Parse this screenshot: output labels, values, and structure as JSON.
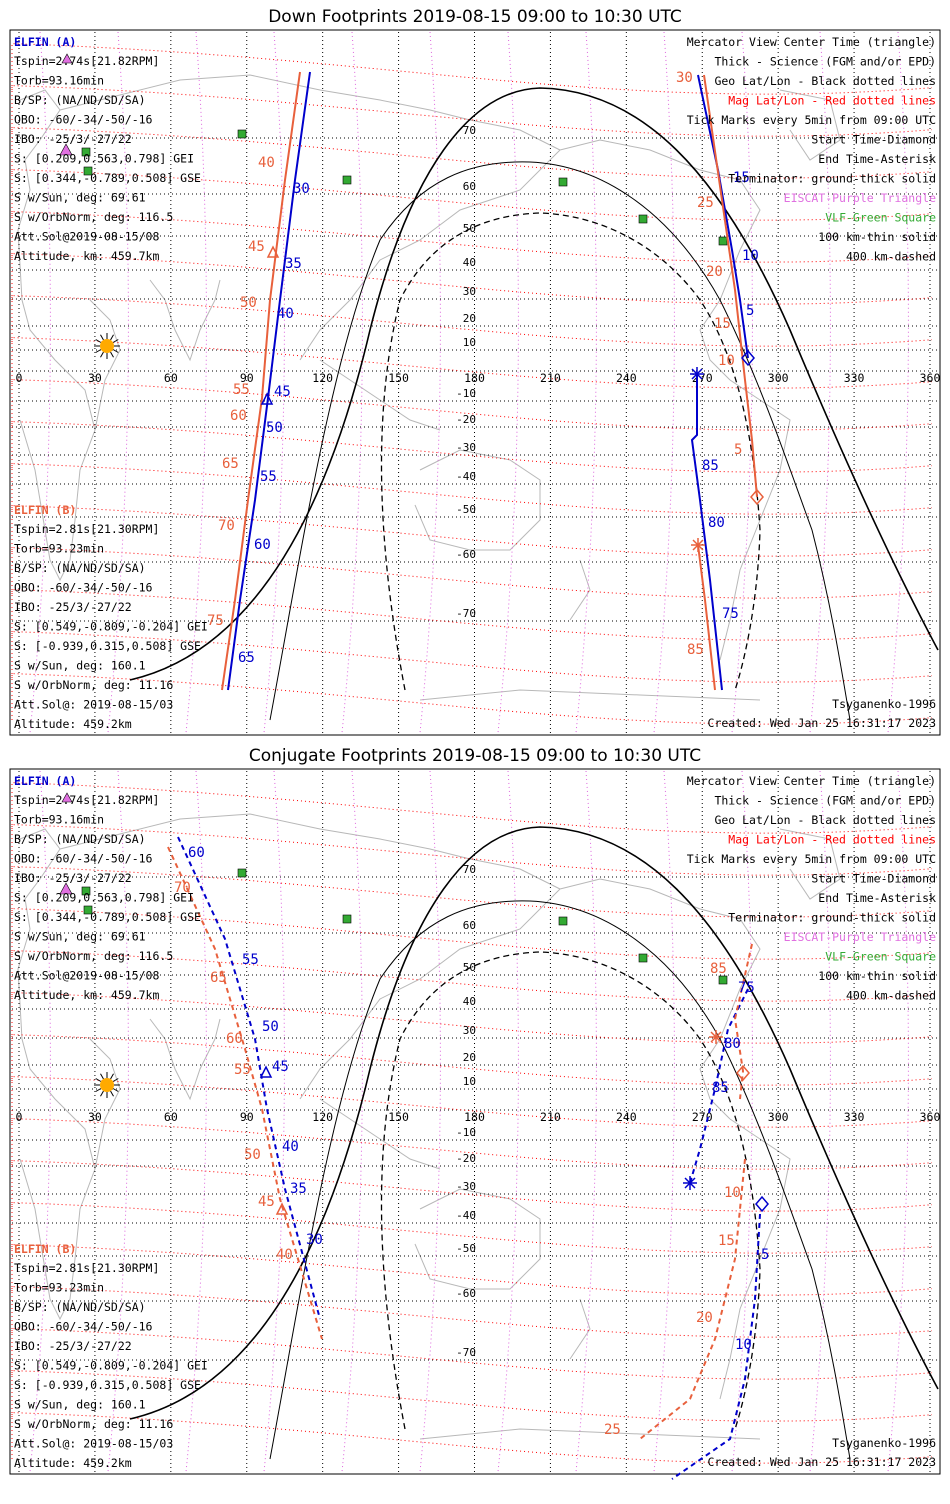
{
  "panels": [
    {
      "id": "down",
      "title": "Down Footprints 2019-08-15 09:00 to 10:30 UTC",
      "sat_a": {
        "name": "ELFIN (A)",
        "lines": [
          "Tspin=2.74s[21.82RPM]",
          "Torb=93.16min",
          "B/SP: (NA/ND/SD/SA)",
          "OBO: -60/-34/-50/-16",
          "IBO: -25/3/-27/22",
          "S: [0.209,0.563,0.798] GEI",
          "S: [0.344,-0.789,0.508] GSE",
          "S w/Sun, deg: 69.61",
          "S w/OrbNorm, deg: 116.5",
          "Att.Sol@2019-08-15/08",
          "Altitude, km: 459.7km"
        ]
      },
      "sat_b": {
        "name": "ELFIN (B)",
        "lines": [
          "Tspin=2.81s[21.30RPM]",
          "Torb=93.23min",
          "B/SP: (NA/ND/SD/SA)",
          "OBO: -60/-34/-50/-16",
          "IBO: -25/3/-27/22",
          "S: [0.549,-0.809,-0.204] GEI",
          "S: [-0.939,0.315,0.508] GSE",
          "S w/Sun, deg: 160.1",
          "S w/OrbNorm, deg: 11.16",
          "Att.Sol@: 2019-08-15/03",
          "Altitude: 459.2km"
        ]
      },
      "legend": [
        "Mercator View Center Time (triangle)",
        "Thick - Science (FGM and/or EPD)",
        "Geo Lat/Lon - Black dotted lines",
        "Mag Lat/Lon - Red dotted lines",
        "Tick Marks every 5min from 09:00 UTC",
        "Start Time-Diamond",
        "End Time-Asterisk",
        "Terminator: ground-thick solid",
        "EISCAT-Purple Triangle",
        "VLF-Green Square",
        "100 km-thin solid",
        "400 km-dashed"
      ],
      "model": "Tsyganenko-1996",
      "created": "Created: Wed Jan 25 16:31:17 2023",
      "tick_labels": {
        "a_west": [
          "30",
          "35",
          "40",
          "45",
          "50",
          "55",
          "60",
          "65"
        ],
        "b_west": [
          "40",
          "45",
          "50",
          "55",
          "60",
          "65",
          "70",
          "75"
        ],
        "a_east": [
          "15",
          "10",
          "5",
          "85",
          "80",
          "75"
        ],
        "b_east": [
          "30",
          "25",
          "20",
          "15",
          "10",
          "5",
          "85"
        ]
      }
    },
    {
      "id": "conjugate",
      "title": "Conjugate Footprints 2019-08-15 09:00 to 10:30 UTC",
      "sat_a": {
        "name": "ELFIN (A)",
        "lines": [
          "Tspin=2.74s[21.82RPM]",
          "Torb=93.16min",
          "B/SP: (NA/ND/SD/SA)",
          "OBO: -60/-34/-50/-16",
          "IBO: -25/3/-27/22",
          "S: [0.209,0.563,0.798] GEI",
          "S: [0.344,-0.789,0.508] GSE",
          "S w/Sun, deg: 69.61",
          "S w/OrbNorm, deg: 116.5",
          "Att.Sol@2019-08-15/08",
          "Altitude, km: 459.7km"
        ]
      },
      "sat_b": {
        "name": "ELFIN (B)",
        "lines": [
          "Tspin=2.81s[21.30RPM]",
          "Torb=93.23min",
          "B/SP: (NA/ND/SD/SA)",
          "OBO: -60/-34/-50/-16",
          "IBO: -25/3/-27/22",
          "S: [0.549,-0.809,-0.204] GEI",
          "S: [-0.939,0.315,0.508] GSE",
          "S w/Sun, deg: 160.1",
          "S w/OrbNorm, deg: 11.16",
          "Att.Sol@: 2019-08-15/03",
          "Altitude: 459.2km"
        ]
      },
      "legend": [
        "Mercator View Center Time (triangle)",
        "Thick - Science (FGM and/or EPD)",
        "Geo Lat/Lon - Black dotted lines",
        "Mag Lat/Lon - Red dotted lines",
        "Tick Marks every 5min from 09:00 UTC",
        "Start Time-Diamond",
        "End Time-Asterisk",
        "Terminator: ground-thick solid",
        "EISCAT-Purple Triangle",
        "VLF-Green Square",
        "100 km-thin solid",
        "400 km-dashed"
      ],
      "model": "Tsyganenko-1996",
      "created": "Created: Wed Jan 25 16:31:17 2023",
      "tick_labels": {
        "a_west": [
          "60",
          "55",
          "50",
          "45",
          "40",
          "35",
          "30"
        ],
        "b_west": [
          "70",
          "65",
          "60",
          "55",
          "50",
          "45",
          "40"
        ],
        "a_east": [
          "75",
          "80",
          "85",
          "5",
          "10"
        ],
        "b_east": [
          "85",
          "10",
          "15",
          "20",
          "25"
        ]
      }
    }
  ],
  "lon_labels": [
    "0",
    "30",
    "60",
    "90",
    "120",
    "150",
    "180",
    "210",
    "240",
    "270",
    "300",
    "330",
    "360"
  ],
  "lat_labels": [
    "70",
    "60",
    "50",
    "40",
    "30",
    "20",
    "10",
    "-10",
    "-20",
    "-30",
    "-40",
    "-50",
    "-60",
    "-70"
  ],
  "colors": {
    "elfin_a": "#0000cc",
    "elfin_b": "#e8603c",
    "mag_grid": "#ff0000",
    "geo_grid": "#000000",
    "eiscat": "#e070e0",
    "vlf": "#33aa33",
    "sun": "#ffaa00",
    "coast": "#b8b8b8"
  }
}
